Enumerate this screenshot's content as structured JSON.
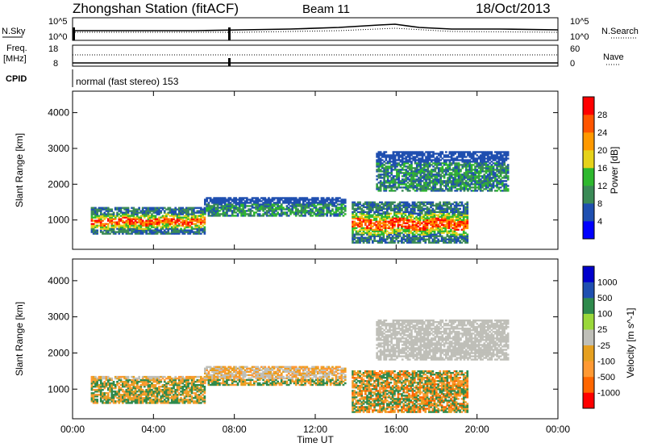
{
  "header": {
    "station": "Zhongshan Station (fitACF)",
    "beam": "Beam 11",
    "date": "18/Oct/2013"
  },
  "strips": {
    "nsky": {
      "label": "N.Sky",
      "tick_top": "10^5",
      "tick_bottom": "10^0"
    },
    "nsearch": {
      "label": "N.Search",
      "tick_top": "10^5",
      "tick_bottom": "10^0"
    },
    "freq": {
      "label_line1": "Freq.",
      "label_line2": "[MHz]",
      "tick_top": "18",
      "tick_bottom": "8"
    },
    "nave": {
      "label": "Nave",
      "tick_top": "60",
      "tick_bottom": "0"
    },
    "cpid": {
      "label": "CPID",
      "text": "normal (fast stereo) 153"
    }
  },
  "colors": {
    "power_scale": [
      "#0000ff",
      "#1f4fb0",
      "#3a8a56",
      "#2eb82e",
      "#e6d21a",
      "#ff9900",
      "#ff5500",
      "#ff0000"
    ],
    "velocity_scale": [
      "#ff0000",
      "#ff6600",
      "#ff9933",
      "#e6a020",
      "#bfbfb8",
      "#9ad83a",
      "#2e8a4c",
      "#1f4fb0",
      "#0000cc"
    ]
  },
  "chart_data": [
    {
      "type": "heatmap",
      "name": "power",
      "xlabel": "",
      "ylabel": "Slant Range [km]",
      "x_ticks": [
        "00:00",
        "04:00",
        "08:00",
        "12:00",
        "16:00",
        "20:00",
        "00:00"
      ],
      "xlim_hours": [
        0,
        24
      ],
      "ylim": [
        180,
        4600
      ],
      "y_ticks": [
        "1000",
        "2000",
        "3000",
        "4000"
      ],
      "colorbar": {
        "label": "Power [dB]",
        "ticks": [
          "4",
          "8",
          "12",
          "16",
          "20",
          "24",
          "28"
        ],
        "range": [
          0,
          32
        ]
      },
      "echo_regions": [
        {
          "t_start": 0.9,
          "t_end": 6.5,
          "r_low": 600,
          "r_high": 1350,
          "level": "strong"
        },
        {
          "t_start": 6.5,
          "t_end": 13.5,
          "r_low": 1100,
          "r_high": 1600,
          "level": "weak"
        },
        {
          "t_start": 13.8,
          "t_end": 19.5,
          "r_low": 350,
          "r_high": 1500,
          "level": "strong"
        },
        {
          "t_start": 15.0,
          "t_end": 21.5,
          "r_low": 1800,
          "r_high": 2900,
          "level": "weak"
        }
      ]
    },
    {
      "type": "heatmap",
      "name": "velocity",
      "xlabel": "Time UT",
      "ylabel": "Slant Range [km]",
      "x_ticks": [
        "00:00",
        "04:00",
        "08:00",
        "12:00",
        "16:00",
        "20:00",
        "00:00"
      ],
      "xlim_hours": [
        0,
        24
      ],
      "ylim": [
        180,
        4600
      ],
      "y_ticks": [
        "1000",
        "2000",
        "3000",
        "4000"
      ],
      "colorbar": {
        "label": "Velocity [m s^-1]",
        "ticks": [
          "1000",
          "500",
          "100",
          "25",
          "-25",
          "-100",
          "-500",
          "-1000"
        ]
      }
    }
  ]
}
